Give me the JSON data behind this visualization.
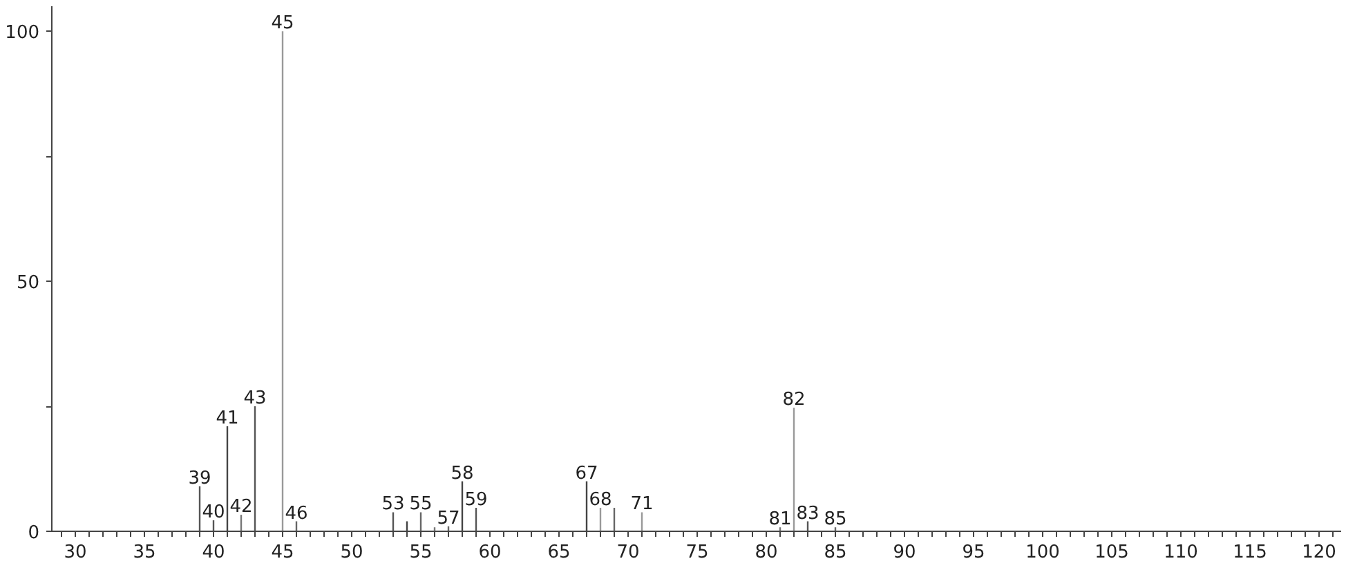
{
  "chart_data": {
    "type": "bar",
    "x": [
      39,
      40,
      41,
      42,
      43,
      45,
      46,
      53,
      54,
      55,
      56,
      57,
      58,
      59,
      67,
      68,
      69,
      71,
      81,
      82,
      83,
      85
    ],
    "values": [
      9,
      2.2,
      21,
      3.3,
      25,
      100,
      2,
      3.8,
      2,
      3.8,
      0.8,
      1,
      10,
      4.7,
      10,
      4.7,
      4.7,
      3.8,
      0.8,
      24.7,
      2,
      0.8
    ],
    "colors": [
      "#555555",
      "#555555",
      "#444444",
      "#777777",
      "#555555",
      "#999999",
      "#666666",
      "#555555",
      "#444444",
      "#666666",
      "#777777",
      "#666666",
      "#444444",
      "#555555",
      "#444444",
      "#999999",
      "#666666",
      "#999999",
      "#777777",
      "#999999",
      "#555555",
      "#666666"
    ],
    "annotations": [
      {
        "text": "39",
        "x": 39,
        "y": 9
      },
      {
        "text": "40",
        "x": 40,
        "y": 2.2
      },
      {
        "text": "41",
        "x": 41,
        "y": 21
      },
      {
        "text": "42",
        "x": 42,
        "y": 3.3
      },
      {
        "text": "43",
        "x": 43,
        "y": 25
      },
      {
        "text": "45",
        "x": 45,
        "y": 100
      },
      {
        "text": "46",
        "x": 46,
        "y": 2
      },
      {
        "text": "53",
        "x": 53,
        "y": 3.8
      },
      {
        "text": "55",
        "x": 55,
        "y": 3.8
      },
      {
        "text": "57",
        "x": 57,
        "y": 1
      },
      {
        "text": "58",
        "x": 58,
        "y": 10
      },
      {
        "text": "59",
        "x": 59,
        "y": 4.7
      },
      {
        "text": "67",
        "x": 67,
        "y": 10
      },
      {
        "text": "68",
        "x": 68,
        "y": 4.7
      },
      {
        "text": "71",
        "x": 71,
        "y": 3.8
      },
      {
        "text": "81",
        "x": 81,
        "y": 0.8
      },
      {
        "text": "82",
        "x": 82,
        "y": 24.7
      },
      {
        "text": "83",
        "x": 83,
        "y": 2
      },
      {
        "text": "85",
        "x": 85,
        "y": 0.8
      }
    ],
    "xlim": [
      28.3,
      121.6
    ],
    "ylim": [
      0,
      105
    ],
    "xticks": [
      {
        "value": 29,
        "label": null
      },
      30,
      {
        "value": 31,
        "label": null
      },
      {
        "value": 32,
        "label": null
      },
      {
        "value": 33,
        "label": null
      },
      {
        "value": 34,
        "label": null
      },
      35,
      {
        "value": 36,
        "label": null
      },
      {
        "value": 37,
        "label": null
      },
      {
        "value": 38,
        "label": null
      },
      {
        "value": 39,
        "label": null
      },
      40,
      {
        "value": 41,
        "label": null
      },
      {
        "value": 42,
        "label": null
      },
      {
        "value": 43,
        "label": null
      },
      {
        "value": 44,
        "label": null
      },
      45,
      {
        "value": 46,
        "label": null
      },
      {
        "value": 47,
        "label": null
      },
      {
        "value": 48,
        "label": null
      },
      {
        "value": 49,
        "label": null
      },
      50,
      {
        "value": 51,
        "label": null
      },
      {
        "value": 52,
        "label": null
      },
      {
        "value": 53,
        "label": null
      },
      {
        "value": 54,
        "label": null
      },
      55,
      {
        "value": 56,
        "label": null
      },
      {
        "value": 57,
        "label": null
      },
      {
        "value": 58,
        "label": null
      },
      {
        "value": 59,
        "label": null
      },
      60,
      {
        "value": 61,
        "label": null
      },
      {
        "value": 62,
        "label": null
      },
      {
        "value": 63,
        "label": null
      },
      {
        "value": 64,
        "label": null
      },
      65,
      {
        "value": 66,
        "label": null
      },
      {
        "value": 67,
        "label": null
      },
      {
        "value": 68,
        "label": null
      },
      {
        "value": 69,
        "label": null
      },
      70,
      {
        "value": 71,
        "label": null
      },
      {
        "value": 72,
        "label": null
      },
      {
        "value": 73,
        "label": null
      },
      {
        "value": 74,
        "label": null
      },
      75,
      {
        "value": 76,
        "label": null
      },
      {
        "value": 77,
        "label": null
      },
      {
        "value": 78,
        "label": null
      },
      {
        "value": 79,
        "label": null
      },
      80,
      {
        "value": 81,
        "label": null
      },
      {
        "value": 82,
        "label": null
      },
      {
        "value": 83,
        "label": null
      },
      {
        "value": 84,
        "label": null
      },
      85,
      {
        "value": 86,
        "label": null
      },
      {
        "value": 87,
        "label": null
      },
      {
        "value": 88,
        "label": null
      },
      {
        "value": 89,
        "label": null
      },
      90,
      {
        "value": 91,
        "label": null
      },
      {
        "value": 92,
        "label": null
      },
      {
        "value": 93,
        "label": null
      },
      {
        "value": 94,
        "label": null
      },
      95,
      {
        "value": 96,
        "label": null
      },
      {
        "value": 97,
        "label": null
      },
      {
        "value": 98,
        "label": null
      },
      {
        "value": 99,
        "label": null
      },
      100,
      {
        "value": 101,
        "label": null
      },
      {
        "value": 102,
        "label": null
      },
      {
        "value": 103,
        "label": null
      },
      {
        "value": 104,
        "label": null
      },
      105,
      {
        "value": 106,
        "label": null
      },
      {
        "value": 107,
        "label": null
      },
      {
        "value": 108,
        "label": null
      },
      {
        "value": 109,
        "label": null
      },
      110,
      {
        "value": 111,
        "label": null
      },
      {
        "value": 112,
        "label": null
      },
      {
        "value": 113,
        "label": null
      },
      {
        "value": 114,
        "label": null
      },
      115,
      {
        "value": 116,
        "label": null
      },
      {
        "value": 117,
        "label": null
      },
      {
        "value": 118,
        "label": null
      },
      {
        "value": 119,
        "label": null
      },
      120,
      {
        "value": 121,
        "label": null
      }
    ],
    "yticks": [
      0,
      {
        "value": 25,
        "label": null
      },
      50,
      {
        "value": 75,
        "label": null
      },
      100
    ],
    "grid": false
  }
}
